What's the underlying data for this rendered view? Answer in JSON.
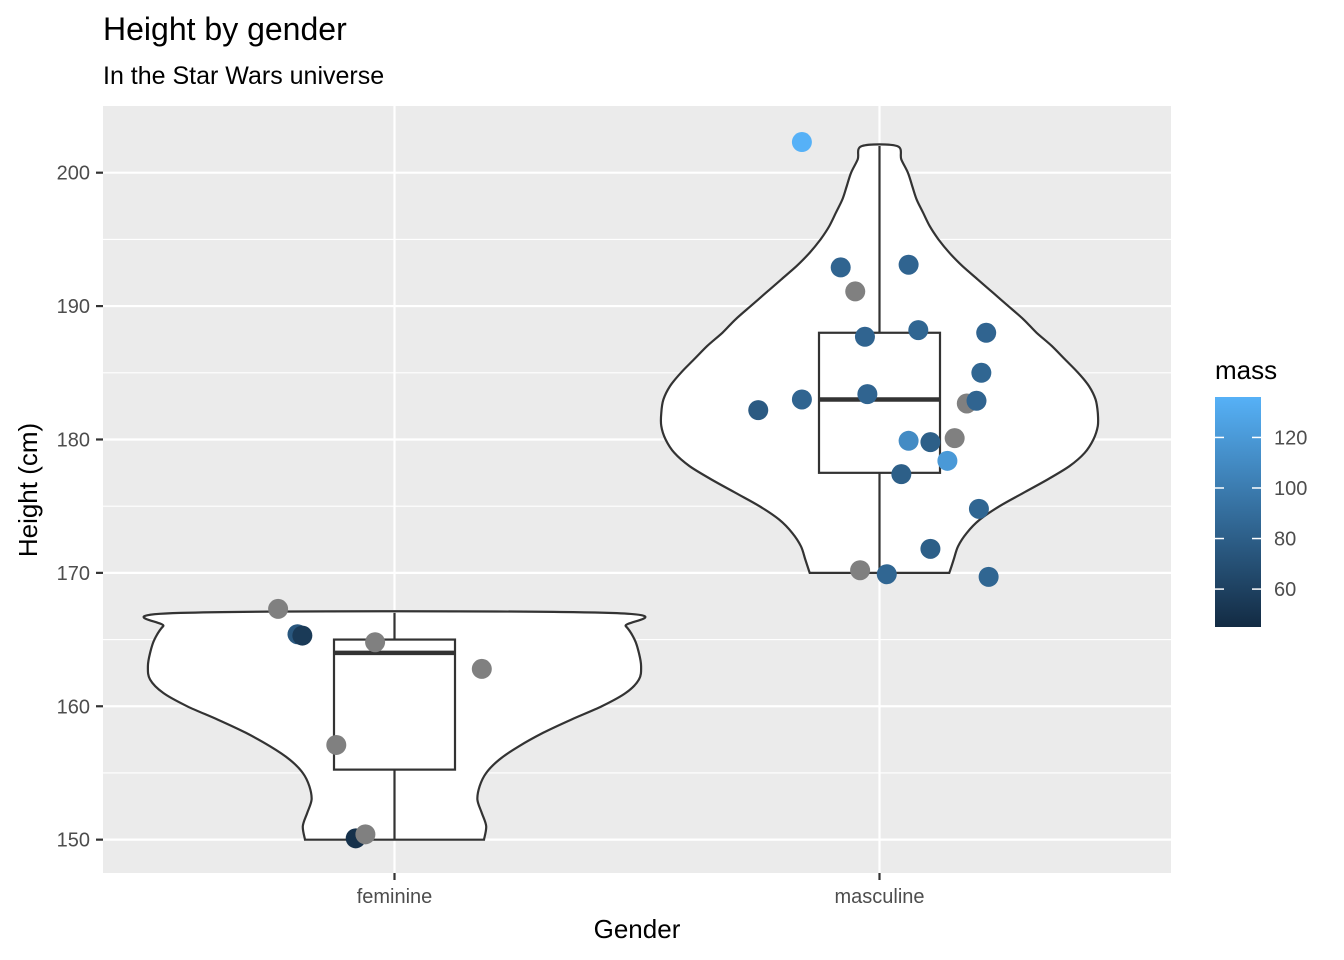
{
  "chart_data": {
    "type": "violin",
    "title": "Height by gender",
    "subtitle": "In the Star Wars universe",
    "xlabel": "Gender",
    "ylabel": "Height (cm)",
    "categories": [
      "feminine",
      "masculine"
    ],
    "ylim": [
      147.5,
      205
    ],
    "yticks": [
      150,
      160,
      170,
      180,
      190,
      200
    ],
    "grid": true,
    "panel_background": "#ebebeb",
    "grid_color": "#ffffff",
    "na_color": "#808080",
    "legend": {
      "title": "mass",
      "position": "right",
      "min": 45,
      "max": 136,
      "low_color": "#132b43",
      "high_color": "#56b1f7",
      "ticks": [
        60,
        80,
        100,
        120
      ]
    },
    "violins": [
      {
        "category": "feminine",
        "min": 150,
        "max": 167,
        "profile": [
          [
            150,
            0.41
          ],
          [
            151,
            0.42
          ],
          [
            152,
            0.4
          ],
          [
            153,
            0.38
          ],
          [
            154,
            0.39
          ],
          [
            155,
            0.42
          ],
          [
            156,
            0.48
          ],
          [
            157,
            0.57
          ],
          [
            158,
            0.68
          ],
          [
            159,
            0.81
          ],
          [
            160,
            0.95
          ],
          [
            161,
            1.06
          ],
          [
            162,
            1.12
          ],
          [
            163,
            1.13
          ],
          [
            164,
            1.12
          ],
          [
            165,
            1.1
          ],
          [
            166,
            1.06
          ],
          [
            167,
            0.98
          ]
        ]
      },
      {
        "category": "masculine",
        "min": 170,
        "max": 202,
        "profile": [
          [
            170,
            0.32
          ],
          [
            171,
            0.34
          ],
          [
            172,
            0.36
          ],
          [
            173,
            0.4
          ],
          [
            174,
            0.46
          ],
          [
            175,
            0.55
          ],
          [
            176,
            0.66
          ],
          [
            177,
            0.77
          ],
          [
            178,
            0.87
          ],
          [
            179,
            0.94
          ],
          [
            180,
            0.98
          ],
          [
            181,
            1.0
          ],
          [
            182,
            1.0
          ],
          [
            183,
            0.99
          ],
          [
            184,
            0.96
          ],
          [
            185,
            0.91
          ],
          [
            186,
            0.85
          ],
          [
            187,
            0.79
          ],
          [
            188,
            0.72
          ],
          [
            189,
            0.66
          ],
          [
            190,
            0.59
          ],
          [
            191,
            0.52
          ],
          [
            192,
            0.45
          ],
          [
            193,
            0.38
          ],
          [
            194,
            0.32
          ],
          [
            195,
            0.27
          ],
          [
            196,
            0.23
          ],
          [
            197,
            0.2
          ],
          [
            198,
            0.17
          ],
          [
            199,
            0.15
          ],
          [
            200,
            0.13
          ],
          [
            201,
            0.1
          ],
          [
            202,
            0.08
          ]
        ]
      }
    ],
    "boxplots": [
      {
        "category": "feminine",
        "q1": 155.25,
        "median": 164,
        "q3": 165,
        "whisker_low": 150,
        "whisker_high": 167
      },
      {
        "category": "masculine",
        "q1": 177.5,
        "median": 183,
        "q3": 188,
        "whisker_low": 170,
        "whisker_high": 202
      }
    ],
    "points": [
      {
        "category": "feminine",
        "x_offset": -0.24,
        "height": 167.3,
        "mass": null
      },
      {
        "category": "feminine",
        "x_offset": -0.2,
        "height": 165.4,
        "mass": 75
      },
      {
        "category": "feminine",
        "x_offset": -0.19,
        "height": 165.3,
        "mass": 55
      },
      {
        "category": "feminine",
        "x_offset": -0.04,
        "height": 164.8,
        "mass": null
      },
      {
        "category": "feminine",
        "x_offset": 0.18,
        "height": 162.8,
        "mass": null
      },
      {
        "category": "feminine",
        "x_offset": -0.12,
        "height": 157.1,
        "mass": null
      },
      {
        "category": "feminine",
        "x_offset": -0.08,
        "height": 150.1,
        "mass": 49
      },
      {
        "category": "feminine",
        "x_offset": -0.06,
        "height": 150.4,
        "mass": null
      },
      {
        "category": "masculine",
        "x_offset": -0.16,
        "height": 202.3,
        "mass": 136
      },
      {
        "category": "masculine",
        "x_offset": -0.08,
        "height": 192.9,
        "mass": 84
      },
      {
        "category": "masculine",
        "x_offset": 0.06,
        "height": 193.1,
        "mass": 84
      },
      {
        "category": "masculine",
        "x_offset": -0.05,
        "height": 191.1,
        "mass": null
      },
      {
        "category": "masculine",
        "x_offset": 0.08,
        "height": 188.2,
        "mass": 85
      },
      {
        "category": "masculine",
        "x_offset": 0.22,
        "height": 188.0,
        "mass": 84
      },
      {
        "category": "masculine",
        "x_offset": -0.03,
        "height": 187.7,
        "mass": 84
      },
      {
        "category": "masculine",
        "x_offset": 0.21,
        "height": 185.0,
        "mass": 85
      },
      {
        "category": "masculine",
        "x_offset": -0.25,
        "height": 182.2,
        "mass": 77
      },
      {
        "category": "masculine",
        "x_offset": -0.16,
        "height": 183.0,
        "mass": 84
      },
      {
        "category": "masculine",
        "x_offset": -0.025,
        "height": 183.4,
        "mass": 84
      },
      {
        "category": "masculine",
        "x_offset": 0.18,
        "height": 182.7,
        "mass": null
      },
      {
        "category": "masculine",
        "x_offset": 0.2,
        "height": 182.9,
        "mass": 84
      },
      {
        "category": "masculine",
        "x_offset": 0.06,
        "height": 179.9,
        "mass": 110
      },
      {
        "category": "masculine",
        "x_offset": 0.105,
        "height": 179.8,
        "mass": 80
      },
      {
        "category": "masculine",
        "x_offset": 0.155,
        "height": 180.1,
        "mass": null
      },
      {
        "category": "masculine",
        "x_offset": 0.14,
        "height": 178.4,
        "mass": 120
      },
      {
        "category": "masculine",
        "x_offset": 0.045,
        "height": 177.4,
        "mass": 80
      },
      {
        "category": "masculine",
        "x_offset": 0.205,
        "height": 174.8,
        "mass": 85
      },
      {
        "category": "masculine",
        "x_offset": 0.105,
        "height": 171.8,
        "mass": 80
      },
      {
        "category": "masculine",
        "x_offset": -0.04,
        "height": 170.2,
        "mass": null
      },
      {
        "category": "masculine",
        "x_offset": 0.015,
        "height": 169.9,
        "mass": 85
      },
      {
        "category": "masculine",
        "x_offset": 0.225,
        "height": 169.7,
        "mass": 85
      }
    ]
  }
}
